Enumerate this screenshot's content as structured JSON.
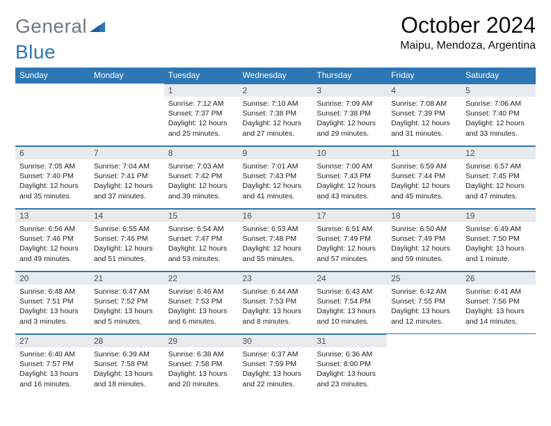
{
  "brand": {
    "part1": "General",
    "part2": "Blue",
    "color1": "#6d7a80",
    "color2": "#2d77b5"
  },
  "title": "October 2024",
  "location": "Maipu, Mendoza, Argentina",
  "theme": {
    "header_bg": "#2d77b5",
    "header_fg": "#ffffff",
    "daynum_bg": "#e8ebee",
    "daynum_fg": "#4a5055",
    "rule_color": "#2d77b5",
    "body_fontsize": 10.5,
    "title_fontsize": 32,
    "location_fontsize": 16
  },
  "weekdays": [
    "Sunday",
    "Monday",
    "Tuesday",
    "Wednesday",
    "Thursday",
    "Friday",
    "Saturday"
  ],
  "grid": [
    [
      null,
      null,
      {
        "n": "1",
        "sunrise": "7:12 AM",
        "sunset": "7:37 PM",
        "dl": "12 hours and 25 minutes."
      },
      {
        "n": "2",
        "sunrise": "7:10 AM",
        "sunset": "7:38 PM",
        "dl": "12 hours and 27 minutes."
      },
      {
        "n": "3",
        "sunrise": "7:09 AM",
        "sunset": "7:38 PM",
        "dl": "12 hours and 29 minutes."
      },
      {
        "n": "4",
        "sunrise": "7:08 AM",
        "sunset": "7:39 PM",
        "dl": "12 hours and 31 minutes."
      },
      {
        "n": "5",
        "sunrise": "7:06 AM",
        "sunset": "7:40 PM",
        "dl": "12 hours and 33 minutes."
      }
    ],
    [
      {
        "n": "6",
        "sunrise": "7:05 AM",
        "sunset": "7:40 PM",
        "dl": "12 hours and 35 minutes."
      },
      {
        "n": "7",
        "sunrise": "7:04 AM",
        "sunset": "7:41 PM",
        "dl": "12 hours and 37 minutes."
      },
      {
        "n": "8",
        "sunrise": "7:03 AM",
        "sunset": "7:42 PM",
        "dl": "12 hours and 39 minutes."
      },
      {
        "n": "9",
        "sunrise": "7:01 AM",
        "sunset": "7:43 PM",
        "dl": "12 hours and 41 minutes."
      },
      {
        "n": "10",
        "sunrise": "7:00 AM",
        "sunset": "7:43 PM",
        "dl": "12 hours and 43 minutes."
      },
      {
        "n": "11",
        "sunrise": "6:59 AM",
        "sunset": "7:44 PM",
        "dl": "12 hours and 45 minutes."
      },
      {
        "n": "12",
        "sunrise": "6:57 AM",
        "sunset": "7:45 PM",
        "dl": "12 hours and 47 minutes."
      }
    ],
    [
      {
        "n": "13",
        "sunrise": "6:56 AM",
        "sunset": "7:46 PM",
        "dl": "12 hours and 49 minutes."
      },
      {
        "n": "14",
        "sunrise": "6:55 AM",
        "sunset": "7:46 PM",
        "dl": "12 hours and 51 minutes."
      },
      {
        "n": "15",
        "sunrise": "6:54 AM",
        "sunset": "7:47 PM",
        "dl": "12 hours and 53 minutes."
      },
      {
        "n": "16",
        "sunrise": "6:53 AM",
        "sunset": "7:48 PM",
        "dl": "12 hours and 55 minutes."
      },
      {
        "n": "17",
        "sunrise": "6:51 AM",
        "sunset": "7:49 PM",
        "dl": "12 hours and 57 minutes."
      },
      {
        "n": "18",
        "sunrise": "6:50 AM",
        "sunset": "7:49 PM",
        "dl": "12 hours and 59 minutes."
      },
      {
        "n": "19",
        "sunrise": "6:49 AM",
        "sunset": "7:50 PM",
        "dl": "13 hours and 1 minute."
      }
    ],
    [
      {
        "n": "20",
        "sunrise": "6:48 AM",
        "sunset": "7:51 PM",
        "dl": "13 hours and 3 minutes."
      },
      {
        "n": "21",
        "sunrise": "6:47 AM",
        "sunset": "7:52 PM",
        "dl": "13 hours and 5 minutes."
      },
      {
        "n": "22",
        "sunrise": "6:46 AM",
        "sunset": "7:53 PM",
        "dl": "13 hours and 6 minutes."
      },
      {
        "n": "23",
        "sunrise": "6:44 AM",
        "sunset": "7:53 PM",
        "dl": "13 hours and 8 minutes."
      },
      {
        "n": "24",
        "sunrise": "6:43 AM",
        "sunset": "7:54 PM",
        "dl": "13 hours and 10 minutes."
      },
      {
        "n": "25",
        "sunrise": "6:42 AM",
        "sunset": "7:55 PM",
        "dl": "13 hours and 12 minutes."
      },
      {
        "n": "26",
        "sunrise": "6:41 AM",
        "sunset": "7:56 PM",
        "dl": "13 hours and 14 minutes."
      }
    ],
    [
      {
        "n": "27",
        "sunrise": "6:40 AM",
        "sunset": "7:57 PM",
        "dl": "13 hours and 16 minutes."
      },
      {
        "n": "28",
        "sunrise": "6:39 AM",
        "sunset": "7:58 PM",
        "dl": "13 hours and 18 minutes."
      },
      {
        "n": "29",
        "sunrise": "6:38 AM",
        "sunset": "7:58 PM",
        "dl": "13 hours and 20 minutes."
      },
      {
        "n": "30",
        "sunrise": "6:37 AM",
        "sunset": "7:59 PM",
        "dl": "13 hours and 22 minutes."
      },
      {
        "n": "31",
        "sunrise": "6:36 AM",
        "sunset": "8:00 PM",
        "dl": "13 hours and 23 minutes."
      },
      null,
      null
    ]
  ],
  "labels": {
    "sunrise": "Sunrise: ",
    "sunset": "Sunset: ",
    "daylight": "Daylight: "
  }
}
